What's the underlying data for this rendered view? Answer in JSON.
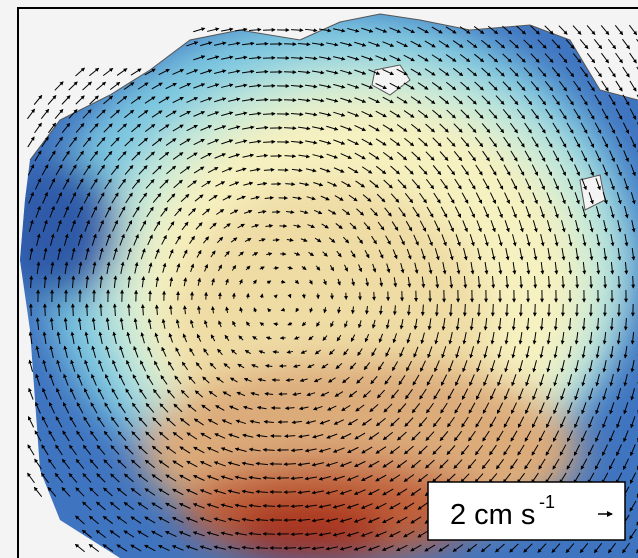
{
  "scale_legend": {
    "label": "2 cm s",
    "exponent": "-1"
  }
}
